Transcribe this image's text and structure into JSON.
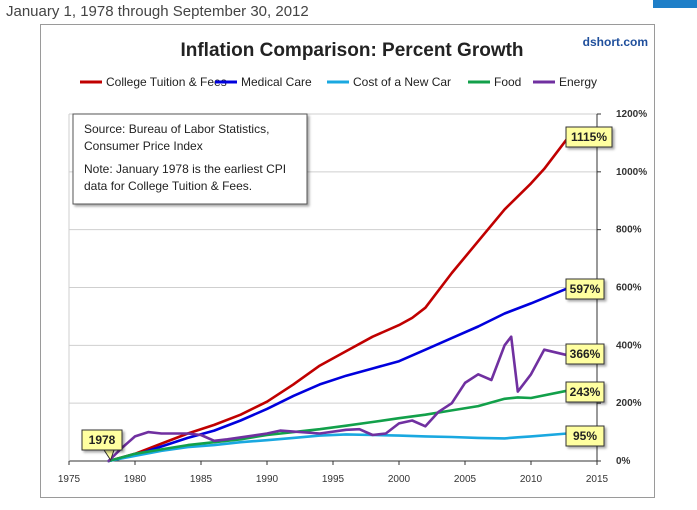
{
  "page": {
    "caption": "January 1, 1978 through September 30, 2012"
  },
  "chart_data": {
    "type": "line",
    "title": "Inflation Comparison: Percent Growth",
    "watermark": "dshort.com",
    "xlabel": "",
    "ylabel": "",
    "xlim": [
      1975,
      2015
    ],
    "ylim": [
      0,
      1200
    ],
    "x_ticks": [
      1975,
      1980,
      1985,
      1990,
      1995,
      2000,
      2005,
      2010,
      2015
    ],
    "y_ticks": [
      0,
      200,
      400,
      600,
      800,
      1000,
      1200
    ],
    "y_tick_labels": [
      "0%",
      "200%",
      "400%",
      "600%",
      "800%",
      "1000%",
      "1200%"
    ],
    "legend_position": "top",
    "start_label": {
      "x": 1978,
      "text": "1978"
    },
    "source_note": {
      "line1": "Source: Bureau of Labor Statistics,",
      "line2": "Consumer Price Index",
      "line3": "Note: January 1978  is the earliest CPI",
      "line4": "data for College Tuition & Fees."
    },
    "series": [
      {
        "name": "College Tuition & Fees",
        "color": "#c00000",
        "end_label": "1115%",
        "x": [
          1978,
          1980,
          1982,
          1984,
          1986,
          1988,
          1990,
          1992,
          1994,
          1996,
          1998,
          2000,
          2001,
          2002,
          2004,
          2006,
          2008,
          2010,
          2011,
          2012.75
        ],
        "y": [
          0,
          25,
          60,
          95,
          125,
          160,
          205,
          265,
          330,
          380,
          430,
          470,
          495,
          530,
          650,
          760,
          870,
          960,
          1010,
          1115
        ]
      },
      {
        "name": "Medical Care",
        "color": "#0000dd",
        "end_label": "597%",
        "x": [
          1978,
          1980,
          1982,
          1984,
          1986,
          1988,
          1990,
          1992,
          1994,
          1996,
          1998,
          2000,
          2002,
          2004,
          2006,
          2008,
          2010,
          2012.75
        ],
        "y": [
          0,
          20,
          50,
          80,
          105,
          140,
          180,
          225,
          265,
          295,
          320,
          345,
          385,
          425,
          465,
          510,
          545,
          597
        ]
      },
      {
        "name": "Cost of a New Car",
        "color": "#1aa8e0",
        "end_label": "95%",
        "x": [
          1978,
          1980,
          1982,
          1984,
          1986,
          1988,
          1990,
          1992,
          1994,
          1996,
          1998,
          2000,
          2002,
          2004,
          2006,
          2008,
          2009,
          2010,
          2012.75
        ],
        "y": [
          0,
          18,
          35,
          48,
          55,
          65,
          72,
          80,
          88,
          92,
          90,
          88,
          85,
          83,
          80,
          78,
          82,
          85,
          95
        ]
      },
      {
        "name": "Food",
        "color": "#12a04a",
        "end_label": "243%",
        "x": [
          1978,
          1980,
          1982,
          1984,
          1986,
          1988,
          1990,
          1992,
          1994,
          1996,
          1998,
          2000,
          2002,
          2004,
          2006,
          2008,
          2009,
          2010,
          2012.75
        ],
        "y": [
          0,
          25,
          40,
          55,
          65,
          75,
          90,
          100,
          110,
          122,
          135,
          148,
          160,
          175,
          190,
          215,
          220,
          218,
          243
        ]
      },
      {
        "name": "Energy",
        "color": "#7030a0",
        "end_label": "366%",
        "x": [
          1978,
          1979,
          1980,
          1981,
          1982,
          1984,
          1985,
          1986,
          1987,
          1990,
          1991,
          1994,
          1996,
          1997,
          1998,
          1999,
          2000,
          2001,
          2002,
          2003,
          2004,
          2005,
          2006,
          2007,
          2008,
          2008.5,
          2009,
          2010,
          2011,
          2012.75
        ],
        "y": [
          0,
          45,
          85,
          100,
          95,
          95,
          90,
          70,
          75,
          95,
          105,
          95,
          108,
          110,
          90,
          95,
          130,
          140,
          120,
          170,
          200,
          270,
          300,
          280,
          400,
          430,
          240,
          300,
          385,
          366
        ]
      }
    ]
  }
}
